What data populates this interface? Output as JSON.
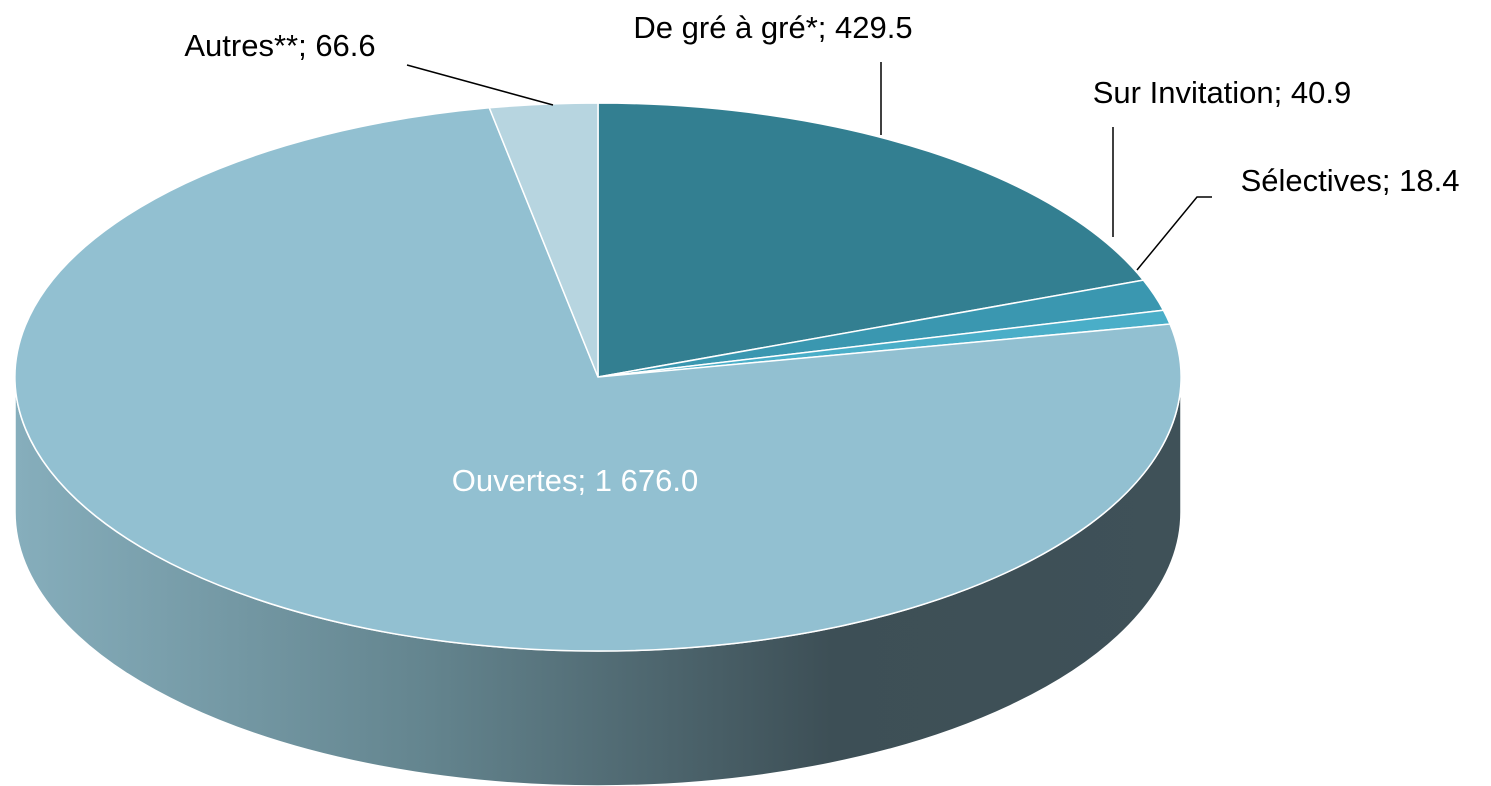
{
  "chart_data": {
    "type": "pie",
    "categories": [
      "De gré à gré*",
      "Sur Invitation",
      "Sélectives",
      "Ouvertes",
      "Autres**"
    ],
    "values": [
      429.5,
      40.9,
      18.4,
      1676.0,
      66.6
    ],
    "value_labels": [
      "429.5",
      "40.9",
      "18.4",
      "1 676.0",
      "66.6"
    ],
    "colors": [
      "#337f91",
      "#3a97b0",
      "#4aaec8",
      "#92c0d1",
      "#b7d5e0"
    ]
  }
}
